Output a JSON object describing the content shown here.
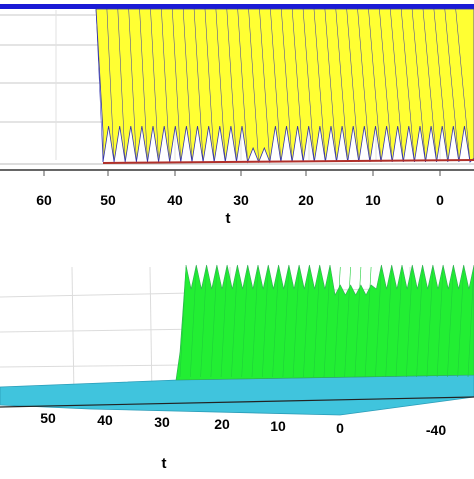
{
  "chart_data": [
    {
      "type": "area",
      "view": "3d-surface",
      "xlabel": "t",
      "x_ticks": [
        "60",
        "50",
        "40",
        "30",
        "20",
        "10",
        "0"
      ],
      "x_values": [
        60,
        50,
        40,
        30,
        20,
        10,
        0
      ],
      "colors": {
        "surface": "#ffff33",
        "edge": "#3333aa",
        "top_band": "#1a1ad6",
        "base_line": "#b0302a",
        "grid": "#c8c8c8"
      },
      "spike_count": 33,
      "grid": true
    },
    {
      "type": "area",
      "view": "3d-surface",
      "xlabel": "t",
      "x_ticks": [
        "50",
        "40",
        "30",
        "20",
        "10",
        "0",
        "-40"
      ],
      "x_values": [
        50,
        40,
        30,
        20,
        10,
        0,
        -40
      ],
      "colors": {
        "surface": "#22ee33",
        "floor": "#40c4dd",
        "edge": "#33aa55",
        "grid": "#dcdcdc"
      },
      "spike_count": 28,
      "grid": true
    }
  ]
}
